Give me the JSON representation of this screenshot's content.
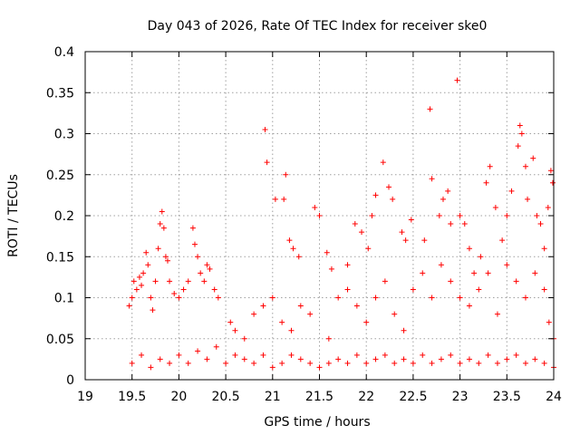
{
  "chart_data": {
    "type": "scatter",
    "title": "Day 043 of 2026, Rate Of TEC Index for receiver ske0",
    "xlabel": "GPS time / hours",
    "ylabel": "ROTI / TECUs",
    "xlim": [
      19,
      24
    ],
    "ylim": [
      0,
      0.4
    ],
    "grid": true,
    "marker": "plus",
    "color": "#ff0000",
    "x_ticks": [
      {
        "value": 19,
        "label": "19"
      },
      {
        "value": 19.5,
        "label": "19.5"
      },
      {
        "value": 20,
        "label": "20"
      },
      {
        "value": 20.5,
        "label": "20.5"
      },
      {
        "value": 21,
        "label": "21"
      },
      {
        "value": 21.5,
        "label": "21.5"
      },
      {
        "value": 22,
        "label": "22"
      },
      {
        "value": 22.5,
        "label": "22.5"
      },
      {
        "value": 23,
        "label": "23"
      },
      {
        "value": 23.5,
        "label": "23.5"
      },
      {
        "value": 24,
        "label": "24"
      }
    ],
    "y_ticks": [
      {
        "value": 0,
        "label": "0"
      },
      {
        "value": 0.05,
        "label": "0.05"
      },
      {
        "value": 0.1,
        "label": "0.1"
      },
      {
        "value": 0.15,
        "label": "0.15"
      },
      {
        "value": 0.2,
        "label": "0.2"
      },
      {
        "value": 0.25,
        "label": "0.25"
      },
      {
        "value": 0.3,
        "label": "0.3"
      },
      {
        "value": 0.35,
        "label": "0.35"
      },
      {
        "value": 0.4,
        "label": "0.4"
      }
    ],
    "points": [
      [
        19.47,
        0.09
      ],
      [
        19.5,
        0.1
      ],
      [
        19.52,
        0.12
      ],
      [
        19.55,
        0.11
      ],
      [
        19.58,
        0.125
      ],
      [
        19.6,
        0.115
      ],
      [
        19.62,
        0.13
      ],
      [
        19.65,
        0.155
      ],
      [
        19.67,
        0.14
      ],
      [
        19.7,
        0.1
      ],
      [
        19.72,
        0.085
      ],
      [
        19.75,
        0.12
      ],
      [
        19.78,
        0.16
      ],
      [
        19.8,
        0.19
      ],
      [
        19.82,
        0.205
      ],
      [
        19.84,
        0.185
      ],
      [
        19.86,
        0.15
      ],
      [
        19.88,
        0.145
      ],
      [
        19.9,
        0.12
      ],
      [
        19.95,
        0.105
      ],
      [
        20.0,
        0.1
      ],
      [
        20.05,
        0.11
      ],
      [
        20.1,
        0.12
      ],
      [
        20.15,
        0.185
      ],
      [
        20.17,
        0.165
      ],
      [
        20.2,
        0.15
      ],
      [
        20.23,
        0.13
      ],
      [
        20.27,
        0.12
      ],
      [
        20.3,
        0.14
      ],
      [
        20.33,
        0.135
      ],
      [
        20.38,
        0.11
      ],
      [
        20.42,
        0.1
      ],
      [
        20.92,
        0.305
      ],
      [
        20.94,
        0.265
      ],
      [
        21.03,
        0.22
      ],
      [
        21.12,
        0.22
      ],
      [
        21.14,
        0.25
      ],
      [
        21.18,
        0.17
      ],
      [
        21.22,
        0.16
      ],
      [
        21.28,
        0.15
      ],
      [
        21.45,
        0.21
      ],
      [
        21.5,
        0.2
      ],
      [
        21.58,
        0.155
      ],
      [
        21.63,
        0.135
      ],
      [
        21.8,
        0.14
      ],
      [
        21.88,
        0.19
      ],
      [
        21.95,
        0.18
      ],
      [
        22.02,
        0.16
      ],
      [
        22.06,
        0.2
      ],
      [
        22.1,
        0.225
      ],
      [
        22.18,
        0.265
      ],
      [
        22.24,
        0.235
      ],
      [
        22.28,
        0.22
      ],
      [
        22.38,
        0.18
      ],
      [
        22.42,
        0.17
      ],
      [
        22.48,
        0.195
      ],
      [
        22.62,
        0.17
      ],
      [
        22.68,
        0.33
      ],
      [
        22.7,
        0.245
      ],
      [
        22.78,
        0.2
      ],
      [
        22.82,
        0.22
      ],
      [
        22.87,
        0.23
      ],
      [
        22.9,
        0.19
      ],
      [
        22.97,
        0.365
      ],
      [
        23.0,
        0.2
      ],
      [
        23.05,
        0.19
      ],
      [
        23.1,
        0.16
      ],
      [
        23.15,
        0.13
      ],
      [
        23.22,
        0.15
      ],
      [
        23.28,
        0.24
      ],
      [
        23.32,
        0.26
      ],
      [
        23.38,
        0.21
      ],
      [
        23.45,
        0.17
      ],
      [
        23.5,
        0.2
      ],
      [
        23.55,
        0.23
      ],
      [
        23.62,
        0.285
      ],
      [
        23.64,
        0.31
      ],
      [
        23.66,
        0.3
      ],
      [
        23.7,
        0.26
      ],
      [
        23.72,
        0.22
      ],
      [
        23.78,
        0.27
      ],
      [
        23.82,
        0.2
      ],
      [
        23.86,
        0.19
      ],
      [
        23.9,
        0.16
      ],
      [
        23.94,
        0.21
      ],
      [
        23.97,
        0.255
      ],
      [
        23.99,
        0.24
      ],
      [
        20.55,
        0.07
      ],
      [
        20.6,
        0.06
      ],
      [
        20.7,
        0.05
      ],
      [
        20.8,
        0.08
      ],
      [
        20.9,
        0.09
      ],
      [
        21.0,
        0.1
      ],
      [
        21.1,
        0.07
      ],
      [
        21.2,
        0.06
      ],
      [
        21.3,
        0.09
      ],
      [
        21.4,
        0.08
      ],
      [
        21.6,
        0.05
      ],
      [
        21.7,
        0.1
      ],
      [
        21.8,
        0.11
      ],
      [
        21.9,
        0.09
      ],
      [
        22.0,
        0.07
      ],
      [
        22.1,
        0.1
      ],
      [
        22.2,
        0.12
      ],
      [
        22.3,
        0.08
      ],
      [
        22.4,
        0.06
      ],
      [
        22.5,
        0.11
      ],
      [
        22.6,
        0.13
      ],
      [
        22.7,
        0.1
      ],
      [
        22.8,
        0.14
      ],
      [
        22.9,
        0.12
      ],
      [
        23.0,
        0.1
      ],
      [
        23.1,
        0.09
      ],
      [
        23.2,
        0.11
      ],
      [
        23.3,
        0.13
      ],
      [
        23.4,
        0.08
      ],
      [
        23.5,
        0.14
      ],
      [
        23.6,
        0.12
      ],
      [
        23.7,
        0.1
      ],
      [
        23.8,
        0.13
      ],
      [
        23.9,
        0.11
      ],
      [
        23.95,
        0.07
      ],
      [
        24.0,
        0.05
      ],
      [
        19.5,
        0.02
      ],
      [
        19.6,
        0.03
      ],
      [
        19.7,
        0.015
      ],
      [
        19.8,
        0.025
      ],
      [
        19.9,
        0.02
      ],
      [
        20.0,
        0.03
      ],
      [
        20.1,
        0.02
      ],
      [
        20.2,
        0.035
      ],
      [
        20.3,
        0.025
      ],
      [
        20.4,
        0.04
      ],
      [
        20.5,
        0.02
      ],
      [
        20.6,
        0.03
      ],
      [
        20.7,
        0.025
      ],
      [
        20.8,
        0.02
      ],
      [
        20.9,
        0.03
      ],
      [
        21.0,
        0.015
      ],
      [
        21.1,
        0.02
      ],
      [
        21.2,
        0.03
      ],
      [
        21.3,
        0.025
      ],
      [
        21.4,
        0.02
      ],
      [
        21.5,
        0.015
      ],
      [
        21.6,
        0.02
      ],
      [
        21.7,
        0.025
      ],
      [
        21.8,
        0.02
      ],
      [
        21.9,
        0.03
      ],
      [
        22.0,
        0.02
      ],
      [
        22.1,
        0.025
      ],
      [
        22.2,
        0.03
      ],
      [
        22.3,
        0.02
      ],
      [
        22.4,
        0.025
      ],
      [
        22.5,
        0.02
      ],
      [
        22.6,
        0.03
      ],
      [
        22.7,
        0.02
      ],
      [
        22.8,
        0.025
      ],
      [
        22.9,
        0.03
      ],
      [
        23.0,
        0.02
      ],
      [
        23.1,
        0.025
      ],
      [
        23.2,
        0.02
      ],
      [
        23.3,
        0.03
      ],
      [
        23.4,
        0.02
      ],
      [
        23.5,
        0.025
      ],
      [
        23.6,
        0.03
      ],
      [
        23.7,
        0.02
      ],
      [
        23.8,
        0.025
      ],
      [
        23.9,
        0.02
      ],
      [
        24.0,
        0.015
      ]
    ]
  }
}
